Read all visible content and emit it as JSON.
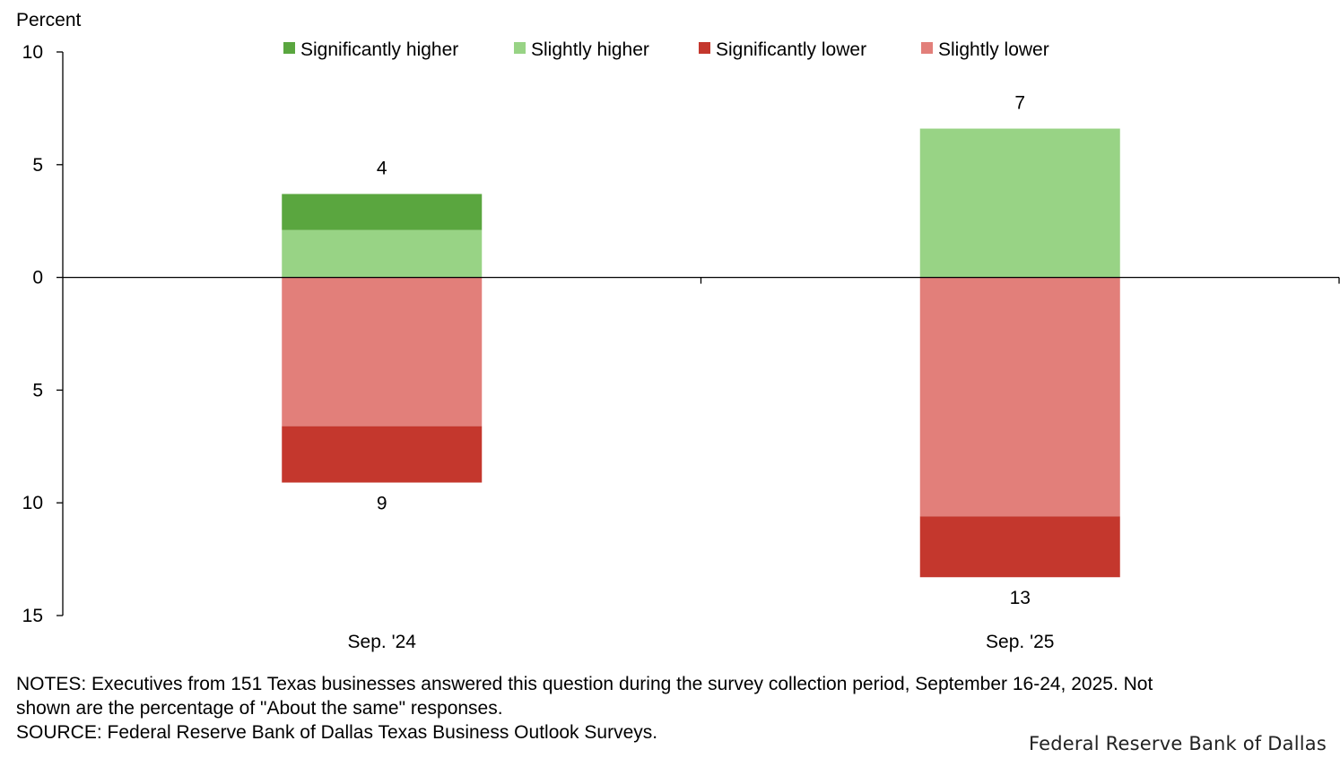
{
  "chart_data": {
    "type": "bar",
    "stacked": true,
    "diverging": true,
    "ylabel": "Percent",
    "yticks": [
      {
        "value": 10,
        "label": "10"
      },
      {
        "value": 5,
        "label": "5"
      },
      {
        "value": 0,
        "label": "0"
      },
      {
        "value": -5,
        "label": "5"
      },
      {
        "value": -10,
        "label": "10"
      },
      {
        "value": -15,
        "label": "15"
      }
    ],
    "ylim": [
      -15,
      10
    ],
    "categories": [
      "Sep. '24",
      "Sep. '25"
    ],
    "series": [
      {
        "name": "Significantly higher",
        "color": "#5aa63f",
        "values": [
          1.6,
          0
        ]
      },
      {
        "name": "Slightly higher",
        "color": "#98d385",
        "values": [
          2.1,
          6.6
        ]
      },
      {
        "name": "Significantly lower",
        "color": "#c4372d",
        "values": [
          -2.5,
          -2.7
        ]
      },
      {
        "name": "Slightly lower",
        "color": "#e27f7a",
        "values": [
          -6.6,
          -10.6
        ]
      }
    ],
    "stack_order": {
      "positive": [
        "Slightly higher",
        "Significantly higher"
      ],
      "negative": [
        "Slightly lower",
        "Significantly lower"
      ]
    },
    "totals": {
      "positive": [
        {
          "value": 3.7,
          "label": "4"
        },
        {
          "value": 6.6,
          "label": "7"
        }
      ],
      "negative": [
        {
          "value": -9.1,
          "label": "9"
        },
        {
          "value": -13.3,
          "label": "13"
        }
      ]
    },
    "legend_position": "top",
    "grid": false
  },
  "notes": {
    "line1": "NOTES: Executives from 151 Texas businesses answered this question during the survey collection period, September 16-24, 2025. Not",
    "line2": "shown are the percentage of \"About the same\" responses.",
    "source": "SOURCE: Federal Reserve Bank of Dallas Texas Business Outlook Surveys."
  },
  "credit": "Federal Reserve Bank of Dallas"
}
